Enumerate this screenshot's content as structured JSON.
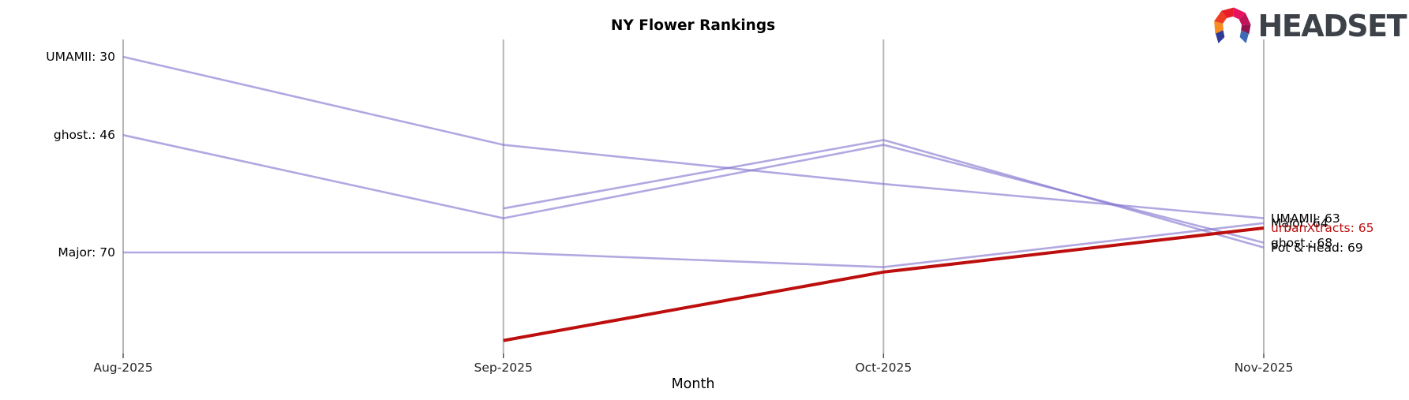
{
  "logo": {
    "text": "HEADSET"
  },
  "chart_data": {
    "type": "line",
    "variant": "bump-ranking",
    "title": "NY Flower Rankings",
    "xlabel": "Month",
    "categories": [
      "Aug-2025",
      "Sep-2025",
      "Oct-2025",
      "Nov-2025"
    ],
    "y_inverted": true,
    "y_meaning": "rank (lower number = higher position)",
    "legend": "none",
    "grid": "vertical month axes only",
    "colors": {
      "line": "#8273ce",
      "highlight": "#bd0e0e",
      "axis": "#b5b5b5"
    },
    "series": [
      {
        "name": "UMAMII",
        "values": [
          30,
          48,
          56,
          63
        ],
        "color": "#8273ce",
        "highlight": false
      },
      {
        "name": "ghost.",
        "values": [
          46,
          63,
          48,
          68
        ],
        "color": "#8273ce",
        "highlight": false
      },
      {
        "name": "Major",
        "values": [
          70,
          70,
          73,
          64
        ],
        "color": "#8273ce",
        "highlight": false
      },
      {
        "name": "Pot & Head",
        "values": [
          null,
          61,
          47,
          69
        ],
        "color": "#8273ce",
        "highlight": false
      },
      {
        "name": "urbanXtracts",
        "values": [
          null,
          88,
          74,
          65
        ],
        "color": "#bd0e0e",
        "highlight": true
      }
    ],
    "start_labels": [
      {
        "text": "UMAMII: 30",
        "value": 30,
        "color": "#000000"
      },
      {
        "text": "ghost.: 46",
        "value": 46,
        "color": "#000000"
      },
      {
        "text": "Major: 70",
        "value": 70,
        "color": "#000000"
      }
    ],
    "end_labels": [
      {
        "text": "UMAMII: 63",
        "value": 63,
        "color": "#000000"
      },
      {
        "text": "Major: 64",
        "value": 64,
        "color": "#000000"
      },
      {
        "text": "urbanXtracts: 65",
        "value": 65,
        "color": "#bd0e0e"
      },
      {
        "text": "ghost.: 68",
        "value": 68,
        "color": "#000000"
      },
      {
        "text": "Pot & Head: 69",
        "value": 69,
        "color": "#000000"
      }
    ]
  }
}
